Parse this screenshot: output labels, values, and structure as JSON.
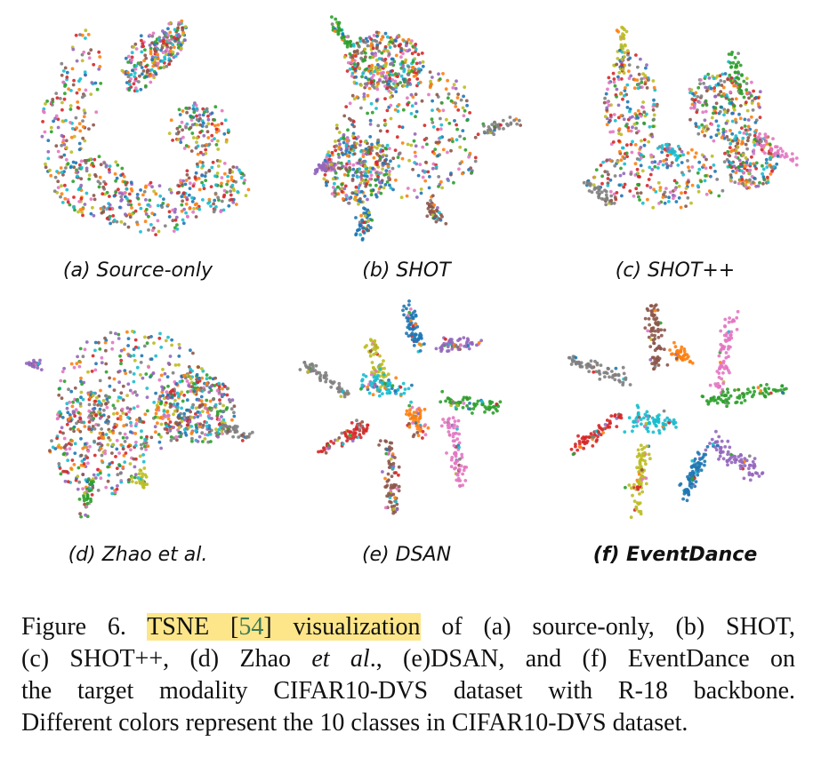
{
  "palette": [
    "#1f77b4",
    "#ff7f0e",
    "#2ca02c",
    "#d62728",
    "#9467bd",
    "#8c564b",
    "#e377c2",
    "#7f7f7f",
    "#bcbd22",
    "#17becf"
  ],
  "panels": [
    {
      "label": "(a) Source-only",
      "bold": false
    },
    {
      "label": "(b) SHOT",
      "bold": false
    },
    {
      "label": "(c) SHOT++",
      "bold": false
    },
    {
      "label": "(d) Zhao et al.",
      "bold": false
    },
    {
      "label": "(e) DSAN",
      "bold": false
    },
    {
      "label": "(f) EventDance",
      "bold": true
    }
  ],
  "caption": {
    "figure_label": "Figure 6.",
    "highlight_pre": "TSNE [",
    "ref": "54",
    "highlight_post": "] visualization",
    "rest_line1": "of (a) source-only, (b) SHOT,",
    "line2_a": "(c) SHOT++, (d) Zhao ",
    "line2_italic": "et al",
    "line2_b": "., (e)DSAN, and (f) EventDance on",
    "line3": "the target modality CIFAR10-DVS dataset with R-18 backbone.",
    "line4": "Different colors represent the 10 classes in CIFAR10-DVS dataset."
  }
}
